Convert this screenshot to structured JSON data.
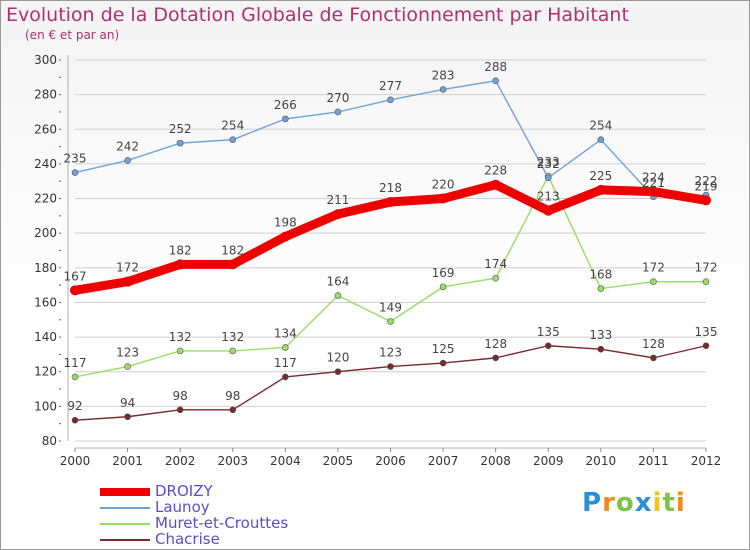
{
  "title": "Evolution de la Dotation Globale de Fonctionnement par Habitant",
  "subtitle": "(en € et par an)",
  "logo": "Proxiti",
  "colors": {
    "title": "#b03070",
    "grid": "#cfcfcf",
    "DROIZY": "#ee0000",
    "Launoy": "#6ea3d6",
    "Muret-et-Crouttes": "#99dd66",
    "Chacrise": "#7a2a2a"
  },
  "chart_data": {
    "type": "line",
    "x": [
      "2000",
      "2001",
      "2002",
      "2003",
      "2004",
      "2005",
      "2006",
      "2007",
      "2008",
      "2009",
      "2010",
      "2011",
      "2012"
    ],
    "ylim": [
      80,
      300
    ],
    "yticks": [
      80,
      100,
      120,
      140,
      160,
      180,
      200,
      220,
      240,
      260,
      280,
      300
    ],
    "grid": true,
    "legend_position": "bottom-left",
    "series": [
      {
        "name": "DROIZY",
        "values": [
          167,
          172,
          182,
          182,
          198,
          211,
          218,
          220,
          228,
          213,
          225,
          224,
          219
        ]
      },
      {
        "name": "Launoy",
        "values": [
          235,
          242,
          252,
          254,
          266,
          270,
          277,
          283,
          288,
          232,
          254,
          221,
          222
        ]
      },
      {
        "name": "Muret-et-Crouttes",
        "values": [
          117,
          123,
          132,
          132,
          134,
          164,
          149,
          169,
          174,
          233,
          168,
          172,
          172
        ]
      },
      {
        "name": "Chacrise",
        "values": [
          92,
          94,
          98,
          98,
          117,
          120,
          123,
          125,
          128,
          135,
          133,
          128,
          135
        ]
      }
    ]
  }
}
